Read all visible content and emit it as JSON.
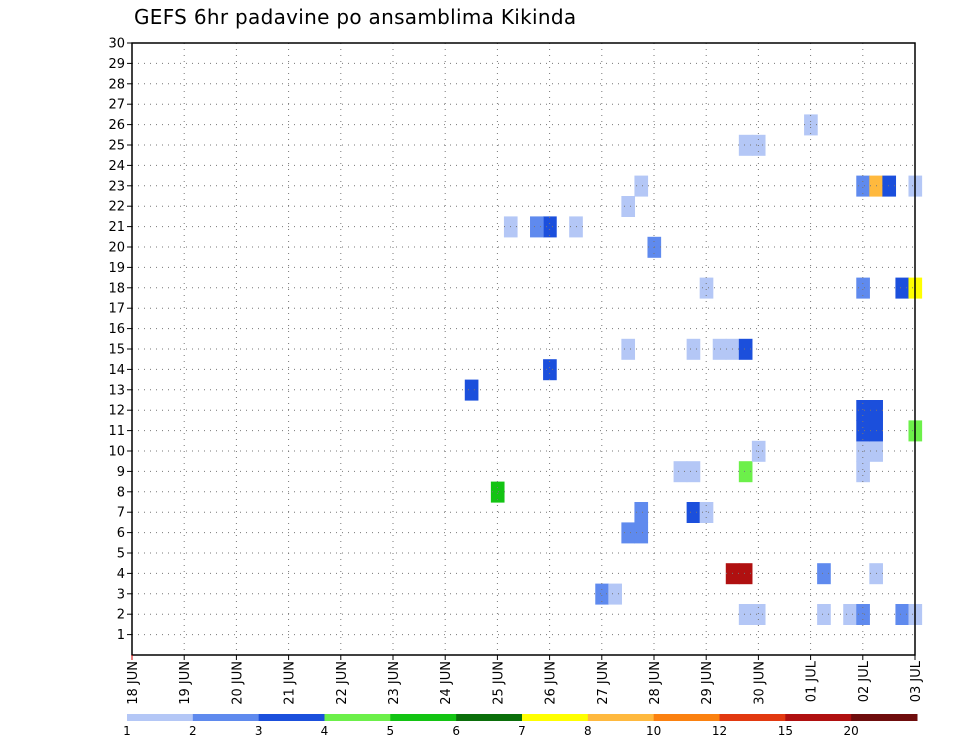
{
  "chart_data": {
    "type": "heatmap",
    "title": "GEFS 6hr padavine po ansamblima Kikinda",
    "xlabel": "",
    "ylabel": "",
    "x_tick_labels": [
      "18 JUN",
      "19 JUN",
      "20 JUN",
      "21 JUN",
      "22 JUN",
      "23 JUN",
      "24 JUN",
      "25 JUN",
      "26 JUN",
      "27 JUN",
      "28 JUN",
      "29 JUN",
      "30 JUN",
      "01 JUL",
      "02 JUL",
      "03 JUL"
    ],
    "x_range_days": [
      0,
      15
    ],
    "y_tick_labels": [
      "1",
      "2",
      "3",
      "4",
      "5",
      "6",
      "7",
      "8",
      "9",
      "10",
      "11",
      "12",
      "13",
      "14",
      "15",
      "16",
      "17",
      "18",
      "19",
      "20",
      "21",
      "22",
      "23",
      "24",
      "25",
      "26",
      "27",
      "28",
      "29",
      "30"
    ],
    "y_range": [
      0,
      30
    ],
    "grid": true,
    "legend": {
      "placement": "bottom",
      "boundaries": [
        "1",
        "2",
        "3",
        "4",
        "5",
        "6",
        "7",
        "8",
        "10",
        "12",
        "15",
        "20"
      ],
      "colors": [
        "#b4c7f6",
        "#5f8aee",
        "#1b4fdc",
        "#6cf04a",
        "#13c413",
        "#0b6f0b",
        "#ffff00",
        "#ffb93e",
        "#fb8110",
        "#e23910",
        "#b01010",
        "#6f0d0d"
      ]
    },
    "cells": [
      {
        "day": 7.0,
        "member": 8,
        "color": "#13c413"
      },
      {
        "day": 6.5,
        "member": 13,
        "color": "#1b4fdc"
      },
      {
        "day": 7.25,
        "member": 21,
        "color": "#b4c7f6"
      },
      {
        "day": 8.0,
        "member": 14,
        "color": "#1b4fdc"
      },
      {
        "day": 8.0,
        "member": 21,
        "color": "#1b4fdc"
      },
      {
        "day": 7.75,
        "member": 21,
        "color": "#5f8aee"
      },
      {
        "day": 8.5,
        "member": 21,
        "color": "#b4c7f6"
      },
      {
        "day": 9.0,
        "member": 3,
        "color": "#5f8aee"
      },
      {
        "day": 9.25,
        "member": 3,
        "color": "#b4c7f6"
      },
      {
        "day": 9.5,
        "member": 6,
        "color": "#5f8aee"
      },
      {
        "day": 9.75,
        "member": 6,
        "color": "#5f8aee"
      },
      {
        "day": 9.75,
        "member": 7,
        "color": "#5f8aee"
      },
      {
        "day": 9.5,
        "member": 15,
        "color": "#b4c7f6"
      },
      {
        "day": 9.5,
        "member": 22,
        "color": "#b4c7f6"
      },
      {
        "day": 9.75,
        "member": 23,
        "color": "#b4c7f6"
      },
      {
        "day": 10.0,
        "member": 20,
        "color": "#5f8aee"
      },
      {
        "day": 10.5,
        "member": 9,
        "color": "#b4c7f6"
      },
      {
        "day": 10.75,
        "member": 9,
        "color": "#b4c7f6"
      },
      {
        "day": 10.75,
        "member": 7,
        "color": "#1b4fdc"
      },
      {
        "day": 11.0,
        "member": 7,
        "color": "#b4c7f6"
      },
      {
        "day": 10.75,
        "member": 15,
        "color": "#b4c7f6"
      },
      {
        "day": 11.25,
        "member": 15,
        "color": "#b4c7f6"
      },
      {
        "day": 11.5,
        "member": 15,
        "color": "#b4c7f6"
      },
      {
        "day": 11.75,
        "member": 15,
        "color": "#1b4fdc"
      },
      {
        "day": 11.0,
        "member": 18,
        "color": "#b4c7f6"
      },
      {
        "day": 11.5,
        "member": 4,
        "color": "#b01010"
      },
      {
        "day": 11.75,
        "member": 4,
        "color": "#b01010"
      },
      {
        "day": 11.75,
        "member": 9,
        "color": "#6cf04a"
      },
      {
        "day": 12.0,
        "member": 10,
        "color": "#b4c7f6"
      },
      {
        "day": 11.75,
        "member": 2,
        "color": "#b4c7f6"
      },
      {
        "day": 12.0,
        "member": 2,
        "color": "#b4c7f6"
      },
      {
        "day": 11.75,
        "member": 25,
        "color": "#b4c7f6"
      },
      {
        "day": 12.0,
        "member": 25,
        "color": "#b4c7f6"
      },
      {
        "day": 13.0,
        "member": 26,
        "color": "#b4c7f6"
      },
      {
        "day": 13.25,
        "member": 4,
        "color": "#5f8aee"
      },
      {
        "day": 13.25,
        "member": 2,
        "color": "#b4c7f6"
      },
      {
        "day": 13.75,
        "member": 2,
        "color": "#b4c7f6"
      },
      {
        "day": 14.0,
        "member": 2,
        "color": "#5f8aee"
      },
      {
        "day": 14.75,
        "member": 2,
        "color": "#5f8aee"
      },
      {
        "day": 15.0,
        "member": 2,
        "color": "#b4c7f6"
      },
      {
        "day": 14.25,
        "member": 4,
        "color": "#b4c7f6"
      },
      {
        "day": 14.0,
        "member": 9,
        "color": "#b4c7f6"
      },
      {
        "day": 14.0,
        "member": 10,
        "color": "#b4c7f6"
      },
      {
        "day": 14.25,
        "member": 10,
        "color": "#b4c7f6"
      },
      {
        "day": 14.0,
        "member": 11,
        "color": "#1b4fdc"
      },
      {
        "day": 14.25,
        "member": 11,
        "color": "#1b4fdc"
      },
      {
        "day": 14.0,
        "member": 12,
        "color": "#1b4fdc"
      },
      {
        "day": 14.25,
        "member": 12,
        "color": "#1b4fdc"
      },
      {
        "day": 15.0,
        "member": 11,
        "color": "#6cf04a"
      },
      {
        "day": 14.0,
        "member": 18,
        "color": "#5f8aee"
      },
      {
        "day": 14.75,
        "member": 18,
        "color": "#1b4fdc"
      },
      {
        "day": 15.0,
        "member": 18,
        "color": "#ffff00"
      },
      {
        "day": 14.0,
        "member": 23,
        "color": "#5f8aee"
      },
      {
        "day": 14.25,
        "member": 23,
        "color": "#ffb93e"
      },
      {
        "day": 14.5,
        "member": 23,
        "color": "#1b4fdc"
      },
      {
        "day": 15.0,
        "member": 23,
        "color": "#b4c7f6"
      }
    ]
  }
}
